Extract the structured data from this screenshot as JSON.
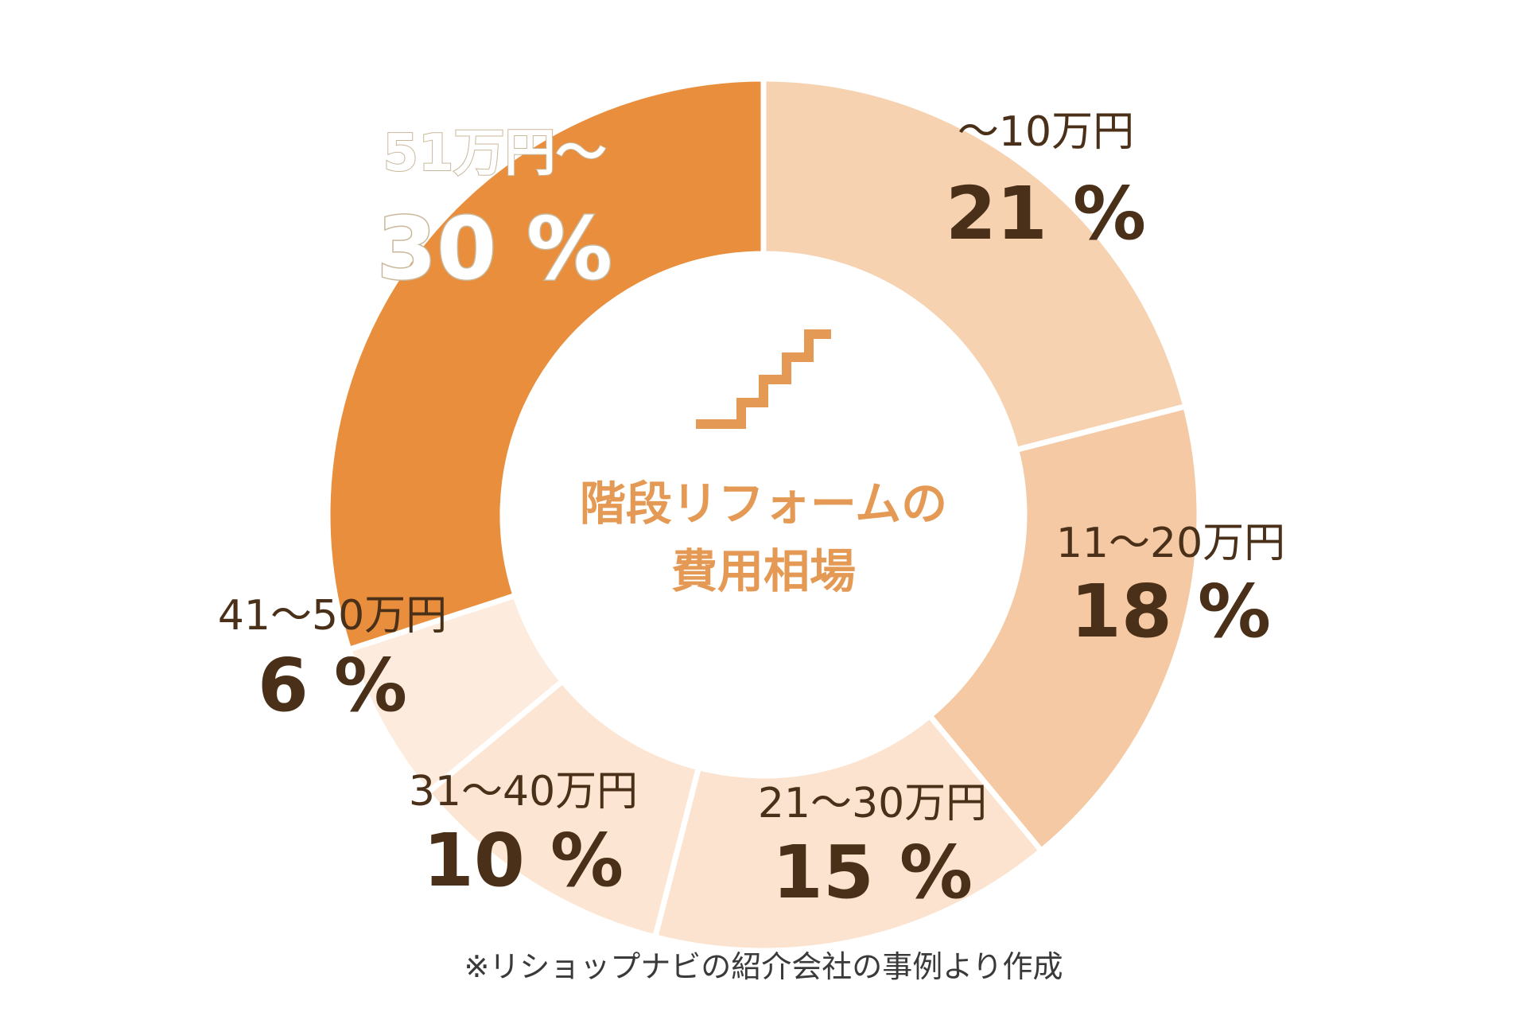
{
  "chart_data": {
    "type": "pie",
    "center_title": [
      "階段リフォームの",
      "費用相場"
    ],
    "center_icon": "stairs-icon",
    "categories": [
      "〜10万円",
      "11〜20万円",
      "21〜30万円",
      "31〜40万円",
      "41〜50万円",
      "51万円〜"
    ],
    "values": [
      21,
      18,
      15,
      10,
      6,
      30
    ],
    "value_labels": [
      "21 %",
      "18 %",
      "15 %",
      "10 %",
      "6 %",
      "30 %"
    ],
    "colors": [
      "#f6d2b1",
      "#f4c9a3",
      "#fbe3cf",
      "#fce6d3",
      "#fdecde",
      "#e98e3c"
    ],
    "label_colors": {
      "dark": "#4a3018",
      "light": "#ffffff",
      "center": "#e49a55"
    }
  },
  "footnote": "※リショップナビの紹介会社の事例より作成"
}
